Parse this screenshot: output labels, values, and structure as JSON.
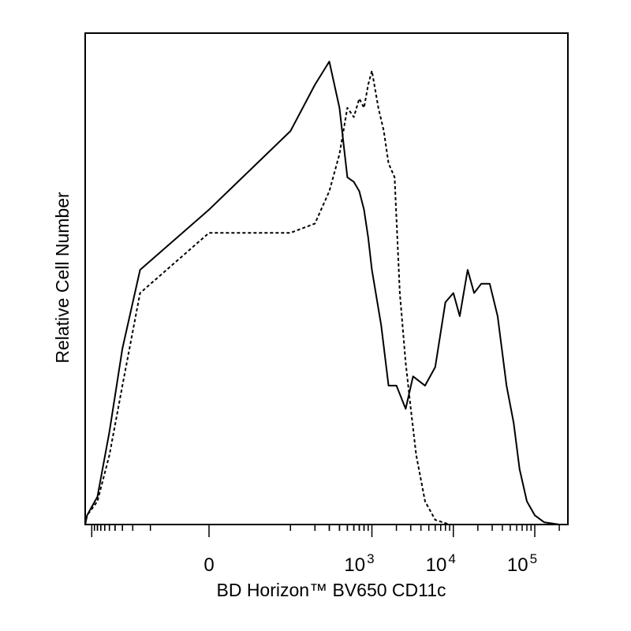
{
  "chart_data": {
    "type": "line",
    "title": "",
    "xlabel": "BD Horizon™ BV650 CD11c",
    "ylabel": "Relative Cell Number",
    "x_scale": "biexponential",
    "xlim": [
      -2000,
      250000
    ],
    "ylim": [
      0,
      1
    ],
    "grid": false,
    "legend": "none",
    "x_tick_labels": [
      {
        "value": 0,
        "base": "0",
        "exp": ""
      },
      {
        "value": 1000,
        "base": "10",
        "exp": "3"
      },
      {
        "value": 10000,
        "base": "10",
        "exp": "4"
      },
      {
        "value": 100000,
        "base": "10",
        "exp": "5"
      }
    ],
    "series": [
      {
        "line_style": "solid",
        "color": "#000000",
        "points": [
          [
            -2000,
            0.0
          ],
          [
            -1200,
            0.02
          ],
          [
            -800,
            0.06
          ],
          [
            -500,
            0.2
          ],
          [
            -300,
            0.38
          ],
          [
            -150,
            0.55
          ],
          [
            0,
            0.68
          ],
          [
            100,
            0.85
          ],
          [
            200,
            0.95
          ],
          [
            300,
            1.0
          ],
          [
            400,
            0.9
          ],
          [
            500,
            0.75
          ],
          [
            600,
            0.74
          ],
          [
            700,
            0.72
          ],
          [
            800,
            0.68
          ],
          [
            900,
            0.62
          ],
          [
            1000,
            0.55
          ],
          [
            1300,
            0.43
          ],
          [
            1600,
            0.3
          ],
          [
            2000,
            0.3
          ],
          [
            2600,
            0.25
          ],
          [
            3200,
            0.32
          ],
          [
            4500,
            0.3
          ],
          [
            6000,
            0.34
          ],
          [
            8000,
            0.48
          ],
          [
            10000,
            0.5
          ],
          [
            12000,
            0.45
          ],
          [
            15000,
            0.55
          ],
          [
            18000,
            0.5
          ],
          [
            22000,
            0.52
          ],
          [
            28000,
            0.52
          ],
          [
            35000,
            0.45
          ],
          [
            45000,
            0.3
          ],
          [
            55000,
            0.22
          ],
          [
            65000,
            0.12
          ],
          [
            80000,
            0.05
          ],
          [
            100000,
            0.02
          ],
          [
            130000,
            0.005
          ],
          [
            200000,
            0.0
          ]
        ]
      },
      {
        "line_style": "dashed",
        "color": "#000000",
        "points": [
          [
            -2000,
            0.0
          ],
          [
            -1200,
            0.02
          ],
          [
            -800,
            0.05
          ],
          [
            -500,
            0.15
          ],
          [
            -300,
            0.3
          ],
          [
            -150,
            0.5
          ],
          [
            0,
            0.63
          ],
          [
            100,
            0.63
          ],
          [
            200,
            0.65
          ],
          [
            300,
            0.72
          ],
          [
            400,
            0.8
          ],
          [
            500,
            0.9
          ],
          [
            600,
            0.88
          ],
          [
            700,
            0.92
          ],
          [
            800,
            0.9
          ],
          [
            900,
            0.95
          ],
          [
            1000,
            0.98
          ],
          [
            1200,
            0.9
          ],
          [
            1400,
            0.85
          ],
          [
            1600,
            0.78
          ],
          [
            1900,
            0.75
          ],
          [
            2200,
            0.5
          ],
          [
            2600,
            0.35
          ],
          [
            3000,
            0.25
          ],
          [
            3500,
            0.15
          ],
          [
            4500,
            0.05
          ],
          [
            6000,
            0.01
          ],
          [
            9000,
            0.0
          ],
          [
            200000,
            0.0
          ]
        ]
      }
    ]
  }
}
